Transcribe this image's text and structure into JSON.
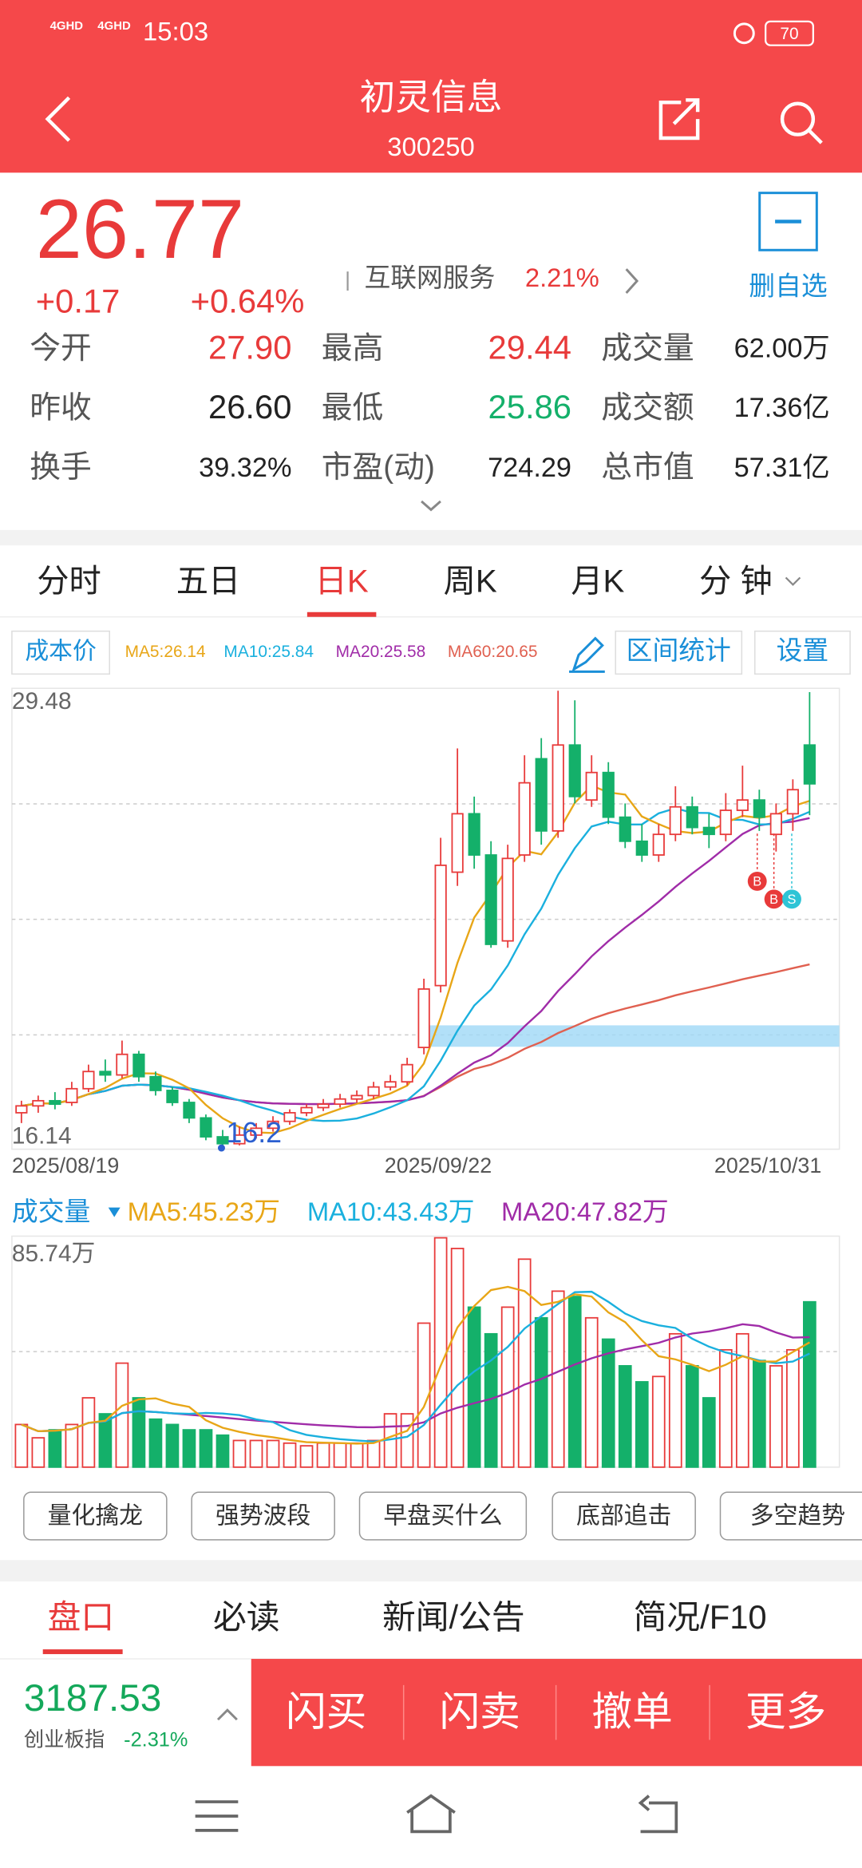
{
  "status_bar": {
    "network": [
      "4GHD",
      "4GHD"
    ],
    "time": "15:03",
    "battery": "70"
  },
  "header": {
    "title": "初灵信息",
    "code": "300250"
  },
  "quote": {
    "price": "26.77",
    "change": "+0.17",
    "change_pct": "+0.64%",
    "industry": "互联网服务",
    "industry_pct": "2.21%",
    "watch_label": "删自选"
  },
  "stats": [
    {
      "label": "今开",
      "value": "27.90"
    },
    {
      "label": "最高",
      "value": "29.44"
    },
    {
      "label": "成交量",
      "value": "62.00万"
    },
    {
      "label": "昨收",
      "value": "26.60"
    },
    {
      "label": "最低",
      "value": "25.86"
    },
    {
      "label": "成交额",
      "value": "17.36亿"
    },
    {
      "label": "换手",
      "value": "39.32%"
    },
    {
      "label": "市盈(动)",
      "value": "724.29"
    },
    {
      "label": "总市值",
      "value": "57.31亿"
    }
  ],
  "period_tabs": [
    "分时",
    "五日",
    "日K",
    "周K",
    "月K",
    "分 钟"
  ],
  "kline": {
    "cost_button": "成本价",
    "ma_legend": [
      "MA5:26.14",
      "MA10:25.84",
      "MA20:25.58",
      "MA60:20.65"
    ],
    "range_button": "区间统计",
    "settings_button": "设置",
    "ylim": [
      16.14,
      29.48
    ],
    "yticks": [
      16.14,
      29.48
    ],
    "dates": [
      "2025/08/19",
      "2025/09/22",
      "2025/10/31"
    ],
    "low_annotation": "16.2",
    "markers": [
      "B",
      "B",
      "S"
    ],
    "open": [
      17.2,
      17.4,
      17.55,
      17.5,
      17.9,
      18.4,
      18.3,
      18.9,
      18.25,
      17.85,
      17.5,
      17.05,
      16.5,
      16.3,
      16.55,
      16.75,
      16.95,
      17.2,
      17.35,
      17.45,
      17.6,
      17.7,
      17.95,
      18.1,
      19.1,
      20.9,
      24.2,
      25.9,
      24.7,
      22.2,
      24.7,
      27.5,
      25.4,
      27.9,
      26.3,
      27.1,
      25.8,
      25.1,
      24.7,
      25.3,
      26.1,
      25.5,
      25.3,
      26.0,
      26.3,
      25.3,
      25.9,
      27.9
    ],
    "high": [
      17.55,
      17.7,
      17.8,
      18.1,
      18.6,
      18.75,
      19.3,
      19.0,
      18.4,
      17.95,
      17.6,
      17.15,
      16.7,
      16.8,
      16.9,
      17.1,
      17.3,
      17.45,
      17.6,
      17.75,
      17.85,
      18.1,
      18.3,
      18.8,
      21.1,
      25.2,
      27.8,
      26.4,
      25.1,
      25.0,
      27.6,
      28.1,
      29.48,
      29.2,
      27.6,
      27.4,
      26.2,
      25.6,
      25.6,
      26.7,
      26.4,
      25.9,
      26.5,
      27.3,
      26.6,
      26.2,
      26.9,
      29.44
    ],
    "low": [
      16.9,
      17.2,
      17.3,
      17.4,
      17.8,
      18.1,
      18.2,
      18.1,
      17.7,
      17.4,
      16.9,
      16.4,
      16.2,
      16.25,
      16.45,
      16.65,
      16.85,
      17.1,
      17.25,
      17.35,
      17.5,
      17.6,
      17.85,
      18.0,
      18.9,
      20.7,
      23.8,
      24.3,
      22.0,
      22.0,
      24.5,
      25.0,
      25.2,
      26.2,
      26.1,
      25.6,
      24.9,
      24.5,
      24.5,
      25.1,
      25.3,
      24.9,
      25.1,
      25.8,
      25.4,
      24.8,
      25.4,
      25.86
    ],
    "close": [
      17.4,
      17.55,
      17.45,
      17.9,
      18.4,
      18.3,
      18.9,
      18.25,
      17.85,
      17.5,
      17.05,
      16.5,
      16.3,
      16.55,
      16.75,
      16.95,
      17.2,
      17.35,
      17.45,
      17.6,
      17.7,
      17.95,
      18.1,
      18.6,
      20.8,
      24.4,
      25.9,
      24.7,
      22.1,
      24.6,
      26.8,
      25.4,
      27.9,
      26.4,
      27.1,
      25.8,
      25.1,
      24.7,
      25.3,
      26.1,
      25.5,
      25.3,
      26.0,
      26.3,
      25.8,
      25.9,
      26.6,
      26.77
    ]
  },
  "volume": {
    "title": "成交量",
    "ma_legend": [
      "MA5:45.23万",
      "MA10:43.43万",
      "MA20:47.82万"
    ],
    "ylim": [
      0,
      85.74
    ],
    "yticks": [
      {
        "value": 85.74,
        "label": "85.74万"
      }
    ],
    "values": [
      16,
      11,
      14,
      16,
      26,
      20,
      39,
      26,
      18,
      16,
      14,
      14,
      12,
      10,
      10,
      10,
      9,
      8,
      9,
      9,
      9,
      10,
      20,
      20,
      54,
      86,
      82,
      60,
      50,
      60,
      78,
      56,
      66,
      64,
      56,
      48,
      38,
      32,
      34,
      50,
      38,
      26,
      44,
      50,
      40,
      38,
      44,
      62
    ]
  },
  "strategy_buttons": [
    "量化擒龙",
    "强势波段",
    "早盘买什么",
    "底部追击",
    "多空趋势"
  ],
  "bottom_tabs": [
    "盘口",
    "必读",
    "新闻/公告",
    "简况/F10"
  ],
  "index_ticker": {
    "value": "3187.53",
    "name": "创业板指",
    "change": "-2.31%"
  },
  "trade_buttons": [
    "闪买",
    "闪卖",
    "撤单",
    "更多"
  ]
}
